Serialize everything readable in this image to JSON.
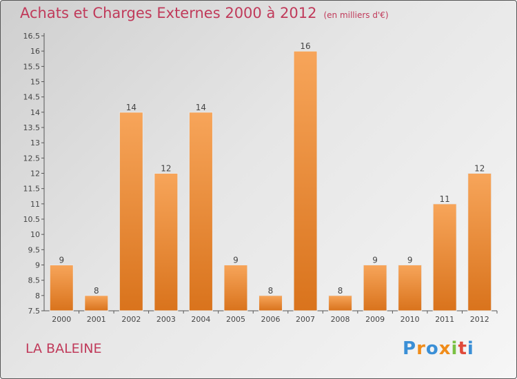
{
  "header": {
    "title": "Achats et Charges Externes 2000 à 2012",
    "unit": "(en milliers d'€)"
  },
  "footer": {
    "location": "LA BALEINE",
    "brand_letters": [
      {
        "ch": "P",
        "color": "#3a8fd6"
      },
      {
        "ch": "r",
        "color": "#f08c1a"
      },
      {
        "ch": "o",
        "color": "#3a8fd6"
      },
      {
        "ch": "x",
        "color": "#f08c1a"
      },
      {
        "ch": "i",
        "color": "#7ac143"
      },
      {
        "ch": "t",
        "color": "#e04a3a"
      },
      {
        "ch": "i",
        "color": "#3a8fd6"
      }
    ]
  },
  "chart_data": {
    "type": "bar",
    "categories": [
      "2000",
      "2001",
      "2002",
      "2003",
      "2004",
      "2005",
      "2006",
      "2007",
      "2008",
      "2009",
      "2010",
      "2011",
      "2012"
    ],
    "values": [
      9,
      8,
      14,
      12,
      14,
      9,
      8,
      16,
      8,
      9,
      9,
      11,
      12
    ],
    "data_labels": [
      "9",
      "8",
      "14",
      "12",
      "14",
      "9",
      "8",
      "16",
      "8",
      "9",
      "9",
      "11",
      "12"
    ],
    "ylim": [
      7.5,
      16.5
    ],
    "yticks": [
      "7.5",
      "8",
      "8.5",
      "9",
      "9.5",
      "10",
      "10.5",
      "11",
      "11.5",
      "12",
      "12.5",
      "13",
      "13.5",
      "14",
      "14.5",
      "15",
      "15.5",
      "16",
      "16.5"
    ],
    "grid": false,
    "bar_color": "#f08c2c"
  }
}
